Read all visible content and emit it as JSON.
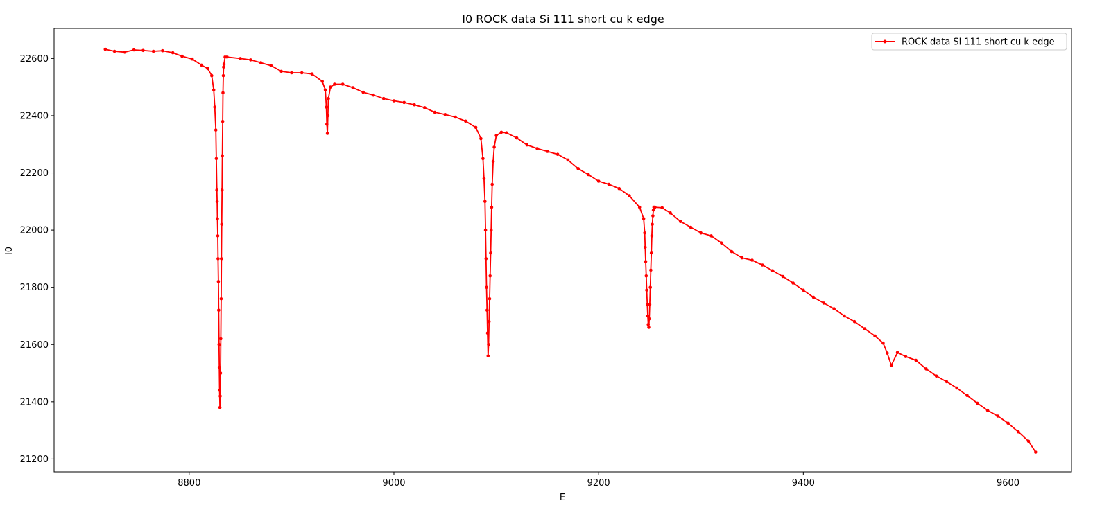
{
  "chart_data": {
    "type": "line",
    "title": "I0 ROCK data Si 111 short cu k edge",
    "xlabel": "E",
    "ylabel": "I0",
    "xlim": [
      8668,
      9662
    ],
    "ylim": [
      21155,
      22705
    ],
    "xticks": [
      8800,
      9000,
      9200,
      9400,
      9600
    ],
    "yticks": [
      21200,
      21400,
      21600,
      21800,
      22000,
      22200,
      22400,
      22600
    ],
    "grid": false,
    "legend_position": "top-right",
    "series": [
      {
        "name": "ROCK data Si 111 short cu k edge",
        "color": "#ff0000",
        "marker": "dot",
        "x": [
          8718,
          8727,
          8737,
          8746,
          8755,
          8765,
          8774,
          8784,
          8793,
          8803,
          8812,
          8818,
          8822,
          8824,
          8825,
          8826,
          8826.5,
          8827,
          8827.3,
          8827.6,
          8827.9,
          8828.2,
          8828.5,
          8828.8,
          8829.1,
          8829.4,
          8829.7,
          8830,
          8830.3,
          8830.6,
          8830.9,
          8831.2,
          8831.5,
          8831.8,
          8832.1,
          8832.4,
          8832.7,
          8833,
          8833.3,
          8833.6,
          8834,
          8835,
          8837,
          8850,
          8860,
          8870,
          8880,
          8890,
          8900,
          8910,
          8920,
          8930,
          8933,
          8934,
          8934.5,
          8935,
          8935.5,
          8936,
          8938,
          8942,
          8950,
          8960,
          8970,
          8980,
          8990,
          9000,
          9010,
          9020,
          9030,
          9040,
          9050,
          9060,
          9070,
          9080,
          9085,
          9087,
          9088,
          9089,
          9089.5,
          9090,
          9090.5,
          9091,
          9091.5,
          9092,
          9092.5,
          9093,
          9093.5,
          9094,
          9094.5,
          9095,
          9095.5,
          9096,
          9097,
          9098,
          9100,
          9105,
          9110,
          9120,
          9130,
          9140,
          9150,
          9160,
          9170,
          9180,
          9190,
          9200,
          9210,
          9220,
          9230,
          9240,
          9244,
          9245,
          9245.5,
          9246,
          9246.5,
          9247,
          9247.5,
          9248,
          9248.5,
          9249,
          9249.5,
          9250,
          9250.5,
          9251,
          9251.5,
          9252,
          9252.5,
          9253,
          9253.5,
          9254,
          9255,
          9262,
          9270,
          9280,
          9290,
          9300,
          9310,
          9320,
          9330,
          9340,
          9350,
          9360,
          9370,
          9380,
          9390,
          9400,
          9410,
          9420,
          9430,
          9440,
          9450,
          9460,
          9470,
          9478,
          9482,
          9486,
          9492,
          9500,
          9510,
          9520,
          9530,
          9540,
          9550,
          9560,
          9570,
          9580,
          9590,
          9600,
          9610,
          9620,
          9627
        ],
        "y": [
          22632,
          22625,
          22622,
          22630,
          22628,
          22625,
          22627,
          22620,
          22608,
          22598,
          22577,
          22565,
          22540,
          22490,
          22430,
          22350,
          22250,
          22140,
          22100,
          22040,
          21980,
          21900,
          21820,
          21720,
          21600,
          21520,
          21440,
          21380,
          21420,
          21500,
          21620,
          21760,
          21900,
          22020,
          22140,
          22260,
          22380,
          22480,
          22540,
          22570,
          22580,
          22605,
          22605,
          22600,
          22595,
          22585,
          22575,
          22555,
          22550,
          22550,
          22546,
          22520,
          22490,
          22430,
          22370,
          22338,
          22400,
          22460,
          22500,
          22510,
          22510,
          22498,
          22482,
          22472,
          22460,
          22452,
          22446,
          22438,
          22428,
          22412,
          22404,
          22395,
          22381,
          22359,
          22320,
          22250,
          22180,
          22100,
          22000,
          21900,
          21800,
          21720,
          21640,
          21560,
          21600,
          21680,
          21760,
          21840,
          21920,
          22000,
          22080,
          22160,
          22240,
          22290,
          22330,
          22342,
          22340,
          22322,
          22298,
          22285,
          22275,
          22265,
          22245,
          22215,
          22194,
          22171,
          22160,
          22145,
          22120,
          22080,
          22040,
          21990,
          21940,
          21890,
          21840,
          21790,
          21740,
          21700,
          21670,
          21660,
          21690,
          21740,
          21800,
          21860,
          21920,
          21980,
          22020,
          22050,
          22070,
          22080,
          22080,
          22078,
          22060,
          22030,
          22010,
          21990,
          21980,
          21955,
          21925,
          21903,
          21895,
          21878,
          21858,
          21838,
          21815,
          21790,
          21765,
          21745,
          21725,
          21700,
          21680,
          21655,
          21630,
          21605,
          21570,
          21527,
          21572,
          21558,
          21545,
          21515,
          21490,
          21470,
          21448,
          21422,
          21395,
          21370,
          21350,
          21325,
          21295,
          21262,
          21224
        ]
      }
    ]
  }
}
